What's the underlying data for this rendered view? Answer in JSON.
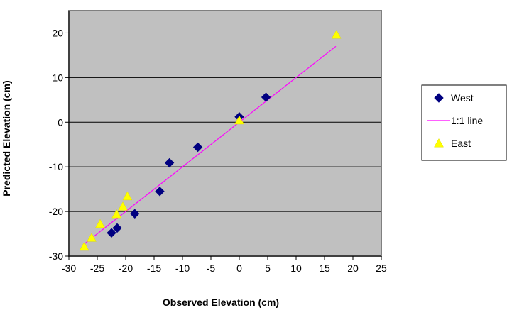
{
  "chart_data": {
    "type": "scatter",
    "xlabel": "Observed Elevation (cm)",
    "ylabel": "Predicted Elevation (cm)",
    "xlim": [
      -30,
      25
    ],
    "ylim": [
      -30,
      25
    ],
    "xticks": [
      -30,
      -25,
      -20,
      -15,
      -10,
      -5,
      0,
      5,
      10,
      15,
      20,
      25
    ],
    "yticks": [
      -30,
      -20,
      -10,
      0,
      10,
      20
    ],
    "grid": "horizontal",
    "plot_background": "#c0c0c0",
    "legend_position": "right",
    "series": [
      {
        "name": "West",
        "marker": "diamond",
        "color": "#000080",
        "points": [
          {
            "x": 4.7,
            "y": 5.6
          },
          {
            "x": 0.0,
            "y": 1.2
          },
          {
            "x": -7.3,
            "y": -5.6
          },
          {
            "x": -12.3,
            "y": -9.1
          },
          {
            "x": -14.0,
            "y": -15.5
          },
          {
            "x": -18.4,
            "y": -20.5
          },
          {
            "x": -21.5,
            "y": -23.7
          },
          {
            "x": -22.5,
            "y": -24.8
          }
        ]
      },
      {
        "name": "1:1 line",
        "marker": "line",
        "color": "#ff00ff",
        "points": [
          {
            "x": -27.5,
            "y": -27.5
          },
          {
            "x": 17.0,
            "y": 17.0
          }
        ]
      },
      {
        "name": "East",
        "marker": "triangle",
        "color": "#ffff00",
        "points": [
          {
            "x": 17.1,
            "y": 19.6
          },
          {
            "x": 0.0,
            "y": 0.4
          },
          {
            "x": -19.7,
            "y": -16.6
          },
          {
            "x": -20.5,
            "y": -18.9
          },
          {
            "x": -21.6,
            "y": -20.6
          },
          {
            "x": -24.5,
            "y": -22.8
          },
          {
            "x": -26.0,
            "y": -25.9
          },
          {
            "x": -27.3,
            "y": -27.9
          }
        ]
      }
    ]
  }
}
